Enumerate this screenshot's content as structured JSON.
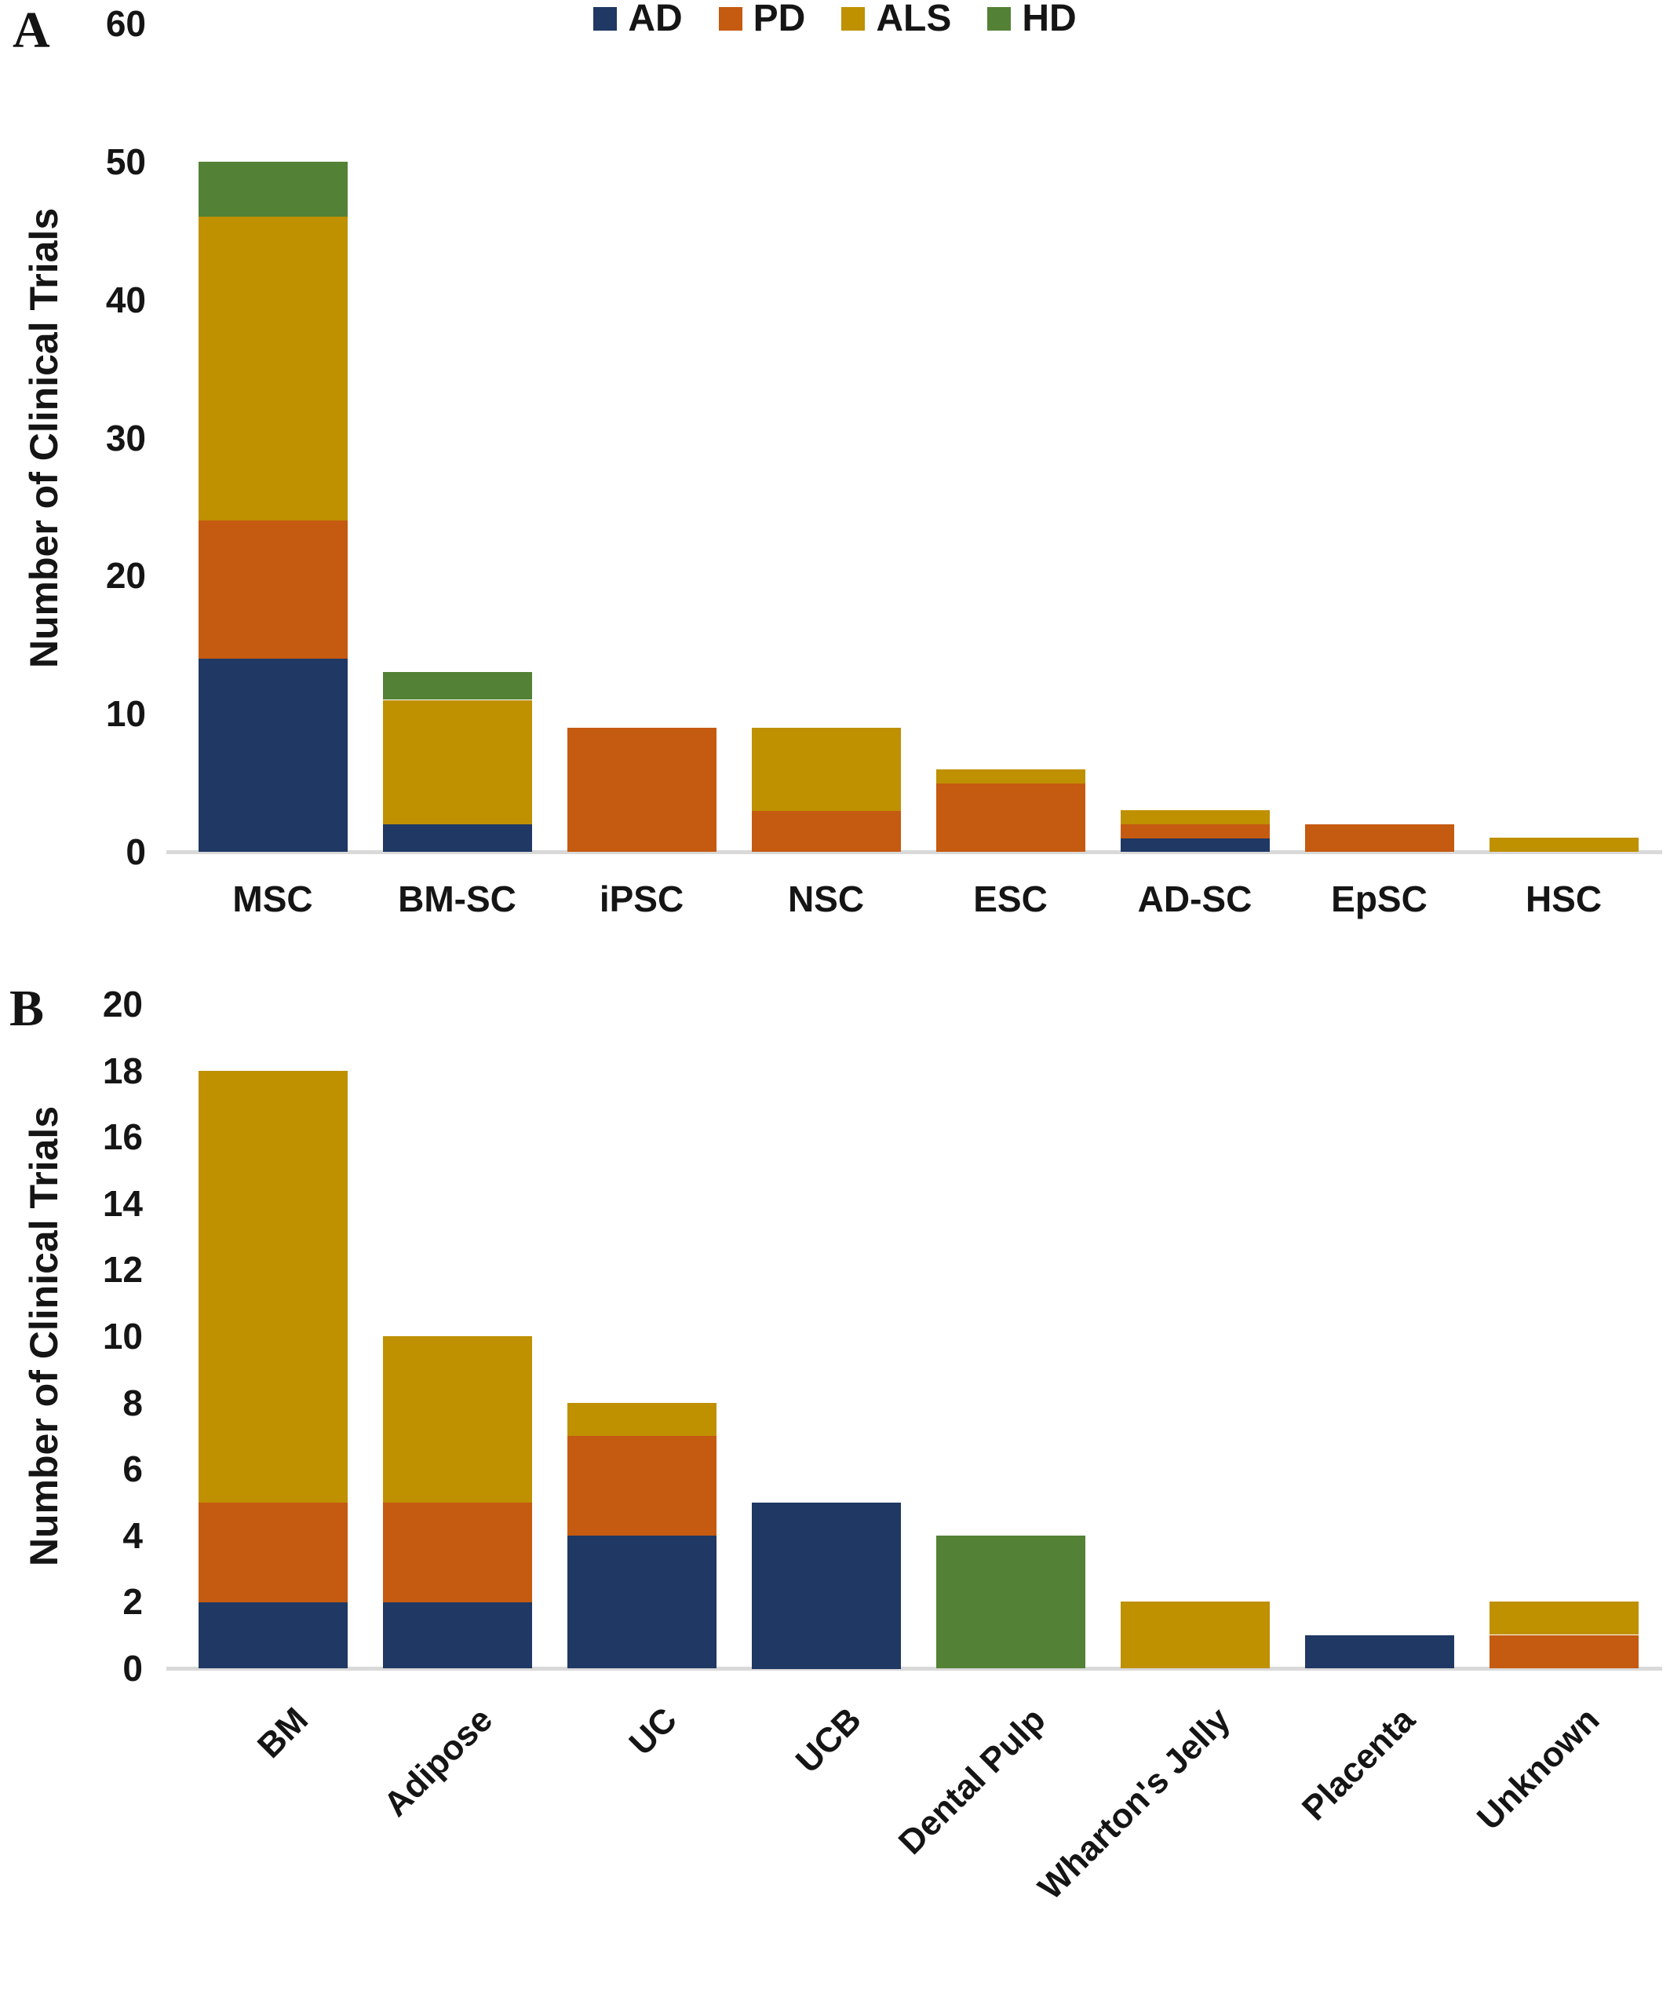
{
  "figure": {
    "background": "#ffffff",
    "baseline_color": "#D9D9D9",
    "text_color": "#151515"
  },
  "chart_data": [
    {
      "type": "bar",
      "stacked": true,
      "panel_label": "A",
      "title": "",
      "xlabel": "",
      "ylabel": "Number of Clinical Trials",
      "ylim": [
        0,
        60
      ],
      "ytick_step": 10,
      "ytick_labels": [
        "0",
        "10",
        "20",
        "30",
        "40",
        "50",
        "60"
      ],
      "grid": false,
      "legend_position": "shared-bottom",
      "x_label_rotation_deg": 0,
      "categories": [
        "MSC",
        "BM-SC",
        "iPSC",
        "NSC",
        "ESC",
        "AD-SC",
        "EpSC",
        "HSC"
      ],
      "series": [
        {
          "name": "AD",
          "color": "#1F3864",
          "values": [
            14,
            2,
            0,
            0,
            0,
            1,
            0,
            0
          ]
        },
        {
          "name": "PD",
          "color": "#C55A11",
          "values": [
            10,
            0,
            9,
            3,
            5,
            1,
            2,
            0
          ]
        },
        {
          "name": "ALS",
          "color": "#BF9000",
          "values": [
            22,
            9,
            0,
            6,
            1,
            1,
            0,
            1
          ]
        },
        {
          "name": "HD",
          "color": "#538135",
          "values": [
            4,
            2,
            0,
            0,
            0,
            0,
            0,
            0
          ]
        }
      ],
      "totals": [
        50,
        13,
        9,
        9,
        6,
        3,
        2,
        1
      ]
    },
    {
      "type": "bar",
      "stacked": true,
      "panel_label": "B",
      "title": "",
      "xlabel": "",
      "ylabel": "Number of Clinical Trials",
      "ylim": [
        0,
        20
      ],
      "ytick_step": 2,
      "ytick_labels": [
        "0",
        "2",
        "4",
        "6",
        "8",
        "10",
        "12",
        "14",
        "16",
        "18",
        "20"
      ],
      "grid": false,
      "legend_position": "shared-bottom",
      "x_label_rotation_deg": 45,
      "categories": [
        "BM",
        "Adipose",
        "UC",
        "UCB",
        "Dental Pulp",
        "Wharton's Jelly",
        "Placenta",
        "Unknown"
      ],
      "series": [
        {
          "name": "AD",
          "color": "#1F3864",
          "values": [
            2,
            2,
            4,
            5,
            0,
            0,
            1,
            0
          ]
        },
        {
          "name": "PD",
          "color": "#C55A11",
          "values": [
            3,
            3,
            3,
            0,
            0,
            0,
            0,
            1
          ]
        },
        {
          "name": "ALS",
          "color": "#BF9000",
          "values": [
            13,
            5,
            1,
            0,
            0,
            2,
            0,
            1
          ]
        },
        {
          "name": "HD",
          "color": "#538135",
          "values": [
            0,
            0,
            0,
            0,
            4,
            0,
            0,
            0
          ]
        }
      ],
      "totals": [
        18,
        10,
        8,
        5,
        4,
        2,
        1,
        2
      ]
    }
  ],
  "legend": {
    "items": [
      {
        "label": "AD",
        "color": "#1F3864"
      },
      {
        "label": "PD",
        "color": "#C55A11"
      },
      {
        "label": "ALS",
        "color": "#BF9000"
      },
      {
        "label": "HD",
        "color": "#538135"
      }
    ]
  }
}
